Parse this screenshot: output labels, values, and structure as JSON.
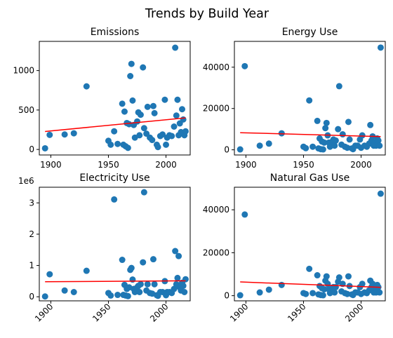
{
  "figure": {
    "title": "Trends by Build Year"
  },
  "chart_data": [
    {
      "type": "scatter",
      "title": "Emissions",
      "xlim": [
        1890,
        2021
      ],
      "ylim": [
        -70,
        1370
      ],
      "xticks": [
        1900,
        1950,
        2000
      ],
      "yticks": [
        0,
        500,
        1000
      ],
      "tick_labels_x": [
        "1900",
        "1950",
        "2000"
      ],
      "tick_labels_y": [
        "0",
        "500",
        "1000"
      ],
      "show_x_tick_labels": true,
      "multiplier": "",
      "points": [
        [
          1895,
          15
        ],
        [
          1899,
          185
        ],
        [
          1912,
          190
        ],
        [
          1920,
          205
        ],
        [
          1931,
          800
        ],
        [
          1950,
          110
        ],
        [
          1952,
          60
        ],
        [
          1955,
          230
        ],
        [
          1958,
          70
        ],
        [
          1962,
          580
        ],
        [
          1963,
          60
        ],
        [
          1964,
          480
        ],
        [
          1965,
          40
        ],
        [
          1966,
          335
        ],
        [
          1967,
          20
        ],
        [
          1968,
          320
        ],
        [
          1969,
          930
        ],
        [
          1970,
          1085
        ],
        [
          1971,
          620
        ],
        [
          1972,
          310
        ],
        [
          1973,
          150
        ],
        [
          1975,
          355
        ],
        [
          1976,
          470
        ],
        [
          1977,
          180
        ],
        [
          1978,
          440
        ],
        [
          1980,
          1040
        ],
        [
          1981,
          270
        ],
        [
          1983,
          200
        ],
        [
          1984,
          540
        ],
        [
          1986,
          150
        ],
        [
          1988,
          120
        ],
        [
          1989,
          550
        ],
        [
          1990,
          460
        ],
        [
          1992,
          60
        ],
        [
          1993,
          30
        ],
        [
          1995,
          170
        ],
        [
          1997,
          190
        ],
        [
          1999,
          630
        ],
        [
          2000,
          60
        ],
        [
          2001,
          150
        ],
        [
          2003,
          180
        ],
        [
          2005,
          170
        ],
        [
          2007,
          290
        ],
        [
          2008,
          1290
        ],
        [
          2009,
          430
        ],
        [
          2010,
          630
        ],
        [
          2011,
          180
        ],
        [
          2012,
          330
        ],
        [
          2013,
          220
        ],
        [
          2014,
          510
        ],
        [
          2015,
          380
        ],
        [
          2016,
          180
        ],
        [
          2017,
          230
        ]
      ],
      "trend": [
        [
          1895,
          228
        ],
        [
          2017,
          400
        ]
      ]
    },
    {
      "type": "scatter",
      "title": "Energy Use",
      "xlim": [
        1890,
        2021
      ],
      "ylim": [
        -2500,
        52500
      ],
      "xticks": [
        1900,
        1950,
        2000
      ],
      "yticks": [
        0,
        20000,
        40000
      ],
      "tick_labels_x": [
        "1900",
        "1950",
        "2000"
      ],
      "tick_labels_y": [
        "0",
        "20000",
        "40000"
      ],
      "show_x_tick_labels": true,
      "multiplier": "",
      "points": [
        [
          1895,
          200
        ],
        [
          1899,
          40500
        ],
        [
          1912,
          2000
        ],
        [
          1920,
          3000
        ],
        [
          1931,
          8000
        ],
        [
          1950,
          1500
        ],
        [
          1952,
          800
        ],
        [
          1955,
          23900
        ],
        [
          1958,
          1500
        ],
        [
          1962,
          14000
        ],
        [
          1963,
          700
        ],
        [
          1964,
          5500
        ],
        [
          1965,
          300
        ],
        [
          1966,
          4000
        ],
        [
          1967,
          200
        ],
        [
          1968,
          3500
        ],
        [
          1969,
          10500
        ],
        [
          1970,
          13000
        ],
        [
          1971,
          7000
        ],
        [
          1972,
          3500
        ],
        [
          1973,
          1500
        ],
        [
          1975,
          4000
        ],
        [
          1976,
          5000
        ],
        [
          1977,
          2000
        ],
        [
          1978,
          4500
        ],
        [
          1980,
          10000
        ],
        [
          1981,
          30800
        ],
        [
          1983,
          2500
        ],
        [
          1984,
          7500
        ],
        [
          1986,
          1500
        ],
        [
          1988,
          1000
        ],
        [
          1989,
          13500
        ],
        [
          1990,
          5000
        ],
        [
          1992,
          700
        ],
        [
          1993,
          300
        ],
        [
          1995,
          2000
        ],
        [
          1997,
          2000
        ],
        [
          1999,
          5000
        ],
        [
          2000,
          1000
        ],
        [
          2001,
          7000
        ],
        [
          2003,
          2000
        ],
        [
          2005,
          1500
        ],
        [
          2007,
          3000
        ],
        [
          2008,
          12000
        ],
        [
          2009,
          4500
        ],
        [
          2010,
          6500
        ],
        [
          2011,
          2000
        ],
        [
          2012,
          3500
        ],
        [
          2013,
          2000
        ],
        [
          2014,
          5500
        ],
        [
          2015,
          4500
        ],
        [
          2016,
          2000
        ],
        [
          2017,
          49500
        ]
      ],
      "trend": [
        [
          1895,
          8300
        ],
        [
          2017,
          6400
        ]
      ]
    },
    {
      "type": "scatter",
      "title": "Electricity Use",
      "xlim": [
        1890,
        2021
      ],
      "ylim": [
        -130000,
        3500000
      ],
      "xticks": [
        1900,
        1950,
        2000
      ],
      "yticks": [
        0,
        1000000,
        2000000,
        3000000
      ],
      "tick_labels_x": [
        "1900",
        "1950",
        "2000"
      ],
      "tick_labels_y": [
        "0",
        "1",
        "2",
        "3"
      ],
      "show_x_tick_labels": true,
      "multiplier": "1e6",
      "points": [
        [
          1895,
          10000
        ],
        [
          1899,
          720000
        ],
        [
          1912,
          200000
        ],
        [
          1920,
          150000
        ],
        [
          1931,
          830000
        ],
        [
          1950,
          120000
        ],
        [
          1952,
          40000
        ],
        [
          1955,
          3110000
        ],
        [
          1958,
          60000
        ],
        [
          1962,
          1180000
        ],
        [
          1963,
          60000
        ],
        [
          1964,
          380000
        ],
        [
          1965,
          40000
        ],
        [
          1966,
          250000
        ],
        [
          1967,
          20000
        ],
        [
          1968,
          300000
        ],
        [
          1969,
          860000
        ],
        [
          1970,
          920000
        ],
        [
          1971,
          550000
        ],
        [
          1972,
          250000
        ],
        [
          1973,
          150000
        ],
        [
          1975,
          300000
        ],
        [
          1976,
          350000
        ],
        [
          1977,
          150000
        ],
        [
          1978,
          400000
        ],
        [
          1980,
          1100000
        ],
        [
          1981,
          3340000
        ],
        [
          1983,
          200000
        ],
        [
          1984,
          400000
        ],
        [
          1986,
          120000
        ],
        [
          1988,
          100000
        ],
        [
          1989,
          1200000
        ],
        [
          1990,
          400000
        ],
        [
          1992,
          50000
        ],
        [
          1993,
          30000
        ],
        [
          1995,
          150000
        ],
        [
          1997,
          150000
        ],
        [
          1999,
          500000
        ],
        [
          2000,
          50000
        ],
        [
          2001,
          150000
        ],
        [
          2003,
          150000
        ],
        [
          2005,
          120000
        ],
        [
          2007,
          250000
        ],
        [
          2008,
          1460000
        ],
        [
          2009,
          400000
        ],
        [
          2010,
          600000
        ],
        [
          2011,
          1300000
        ],
        [
          2012,
          300000
        ],
        [
          2013,
          200000
        ],
        [
          2014,
          450000
        ],
        [
          2015,
          350000
        ],
        [
          2016,
          150000
        ],
        [
          2017,
          560000
        ]
      ],
      "trend": [
        [
          1895,
          480000
        ],
        [
          2017,
          510000
        ]
      ]
    },
    {
      "type": "scatter",
      "title": "Natural Gas Use",
      "xlim": [
        1890,
        2021
      ],
      "ylim": [
        -2400,
        50500
      ],
      "xticks": [
        1900,
        1950,
        2000
      ],
      "yticks": [
        0,
        20000,
        40000
      ],
      "tick_labels_x": [
        "1900",
        "1950",
        "2000"
      ],
      "tick_labels_y": [
        "0",
        "20000",
        "40000"
      ],
      "show_x_tick_labels": true,
      "multiplier": "",
      "points": [
        [
          1895,
          200
        ],
        [
          1899,
          37800
        ],
        [
          1912,
          1500
        ],
        [
          1920,
          2800
        ],
        [
          1931,
          5000
        ],
        [
          1950,
          1200
        ],
        [
          1952,
          800
        ],
        [
          1955,
          12500
        ],
        [
          1958,
          1200
        ],
        [
          1962,
          9500
        ],
        [
          1963,
          600
        ],
        [
          1964,
          4500
        ],
        [
          1965,
          300
        ],
        [
          1966,
          3500
        ],
        [
          1967,
          200
        ],
        [
          1968,
          3000
        ],
        [
          1969,
          7000
        ],
        [
          1970,
          9000
        ],
        [
          1971,
          5500
        ],
        [
          1972,
          3000
        ],
        [
          1973,
          1200
        ],
        [
          1975,
          3500
        ],
        [
          1976,
          4000
        ],
        [
          1977,
          1500
        ],
        [
          1978,
          4000
        ],
        [
          1980,
          6500
        ],
        [
          1981,
          8500
        ],
        [
          1983,
          2000
        ],
        [
          1984,
          5500
        ],
        [
          1986,
          1200
        ],
        [
          1988,
          800
        ],
        [
          1989,
          9000
        ],
        [
          1990,
          4500
        ],
        [
          1992,
          600
        ],
        [
          1993,
          300
        ],
        [
          1995,
          1500
        ],
        [
          1997,
          1500
        ],
        [
          1999,
          4000
        ],
        [
          2000,
          800
        ],
        [
          2001,
          5500
        ],
        [
          2003,
          1500
        ],
        [
          2005,
          1200
        ],
        [
          2007,
          2500
        ],
        [
          2008,
          7000
        ],
        [
          2009,
          4000
        ],
        [
          2010,
          5500
        ],
        [
          2011,
          1500
        ],
        [
          2012,
          3000
        ],
        [
          2013,
          1500
        ],
        [
          2014,
          5000
        ],
        [
          2015,
          4000
        ],
        [
          2016,
          1500
        ],
        [
          2017,
          47500
        ]
      ],
      "trend": [
        [
          1895,
          6400
        ],
        [
          2017,
          3900
        ]
      ]
    }
  ]
}
